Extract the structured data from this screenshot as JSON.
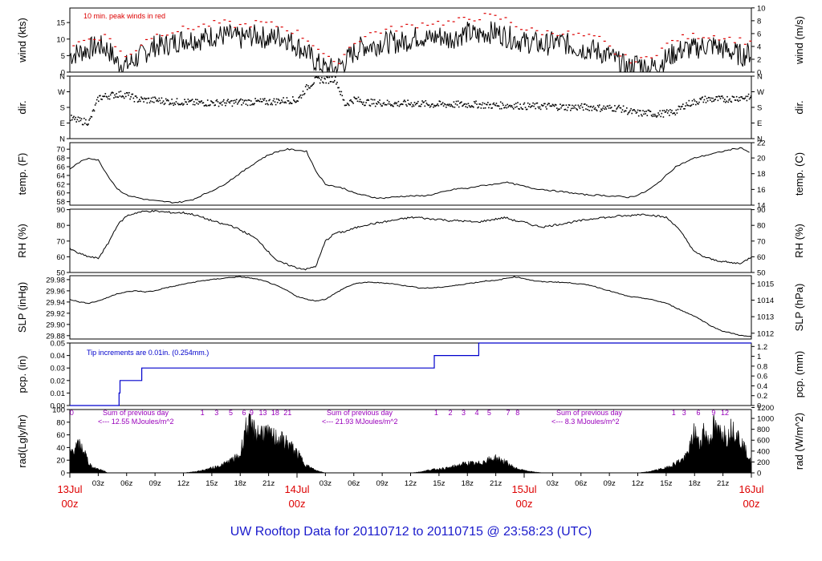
{
  "title": "UW Rooftop Data for 20110712  to  20110715 @ 23:58:23  (UTC)",
  "colors": {
    "title": "#1a1acc",
    "axis": "#000000",
    "wind_peak": "#dd0000",
    "pcp": "#0000cc",
    "rad_note": "#9900bb",
    "date": "#dd0000"
  },
  "x_axis": {
    "range_hours": [
      0,
      72
    ],
    "hour_ticks": [
      "03z",
      "06z",
      "09z",
      "12z",
      "15z",
      "18z",
      "21z",
      "03z",
      "06z",
      "09z",
      "12z",
      "15z",
      "18z",
      "21z",
      "03z",
      "06z",
      "09z",
      "12z",
      "15z",
      "18z",
      "21z"
    ],
    "date_labels": [
      {
        "hour": 0,
        "day": "13Jul",
        "time": "00z"
      },
      {
        "hour": 24,
        "day": "14Jul",
        "time": "00z"
      },
      {
        "hour": 48,
        "day": "15Jul",
        "time": "00z"
      },
      {
        "hour": 72,
        "day": "16Jul",
        "time": "00z"
      }
    ]
  },
  "panels": {
    "wind": {
      "ylabel_left": "wind (kts)",
      "ylabel_right": "wind (m/s)",
      "left_ticks": [
        "0",
        "5",
        "10",
        "15"
      ],
      "right_ticks": [
        "0",
        "2",
        "4",
        "6",
        "8",
        "10"
      ],
      "annotation": "10 min. peak winds in red"
    },
    "dir": {
      "ylabel_left": "dir.",
      "ylabel_right": "dir.",
      "ticks": [
        "N",
        "E",
        "S",
        "W",
        "N"
      ]
    },
    "temp": {
      "ylabel_left": "temp. (F)",
      "ylabel_right": "temp. (C)",
      "left_ticks": [
        "58",
        "60",
        "62",
        "64",
        "66",
        "68",
        "70"
      ],
      "right_ticks": [
        "14",
        "16",
        "18",
        "20",
        "22"
      ]
    },
    "rh": {
      "ylabel_left": "RH (%)",
      "ylabel_right": "RH (%)",
      "ticks": [
        "50",
        "60",
        "70",
        "80",
        "90"
      ]
    },
    "slp": {
      "ylabel_left": "SLP (inHg)",
      "ylabel_right": "SLP (hPa)",
      "left_ticks": [
        "29.88",
        "29.90",
        "29.92",
        "29.94",
        "29.96",
        "29.98"
      ],
      "right_ticks": [
        "1012",
        "1013",
        "1014",
        "1015"
      ]
    },
    "pcp": {
      "ylabel_left": "pcp. (in)",
      "ylabel_right": "pcp. (mm)",
      "left_ticks": [
        "0.00",
        "0.01",
        "0.02",
        "0.03",
        "0.04",
        "0.05"
      ],
      "right_ticks": [
        "0",
        "0.2",
        "0.4",
        "0.6",
        "0.8",
        "1",
        "1.2"
      ],
      "annotation": "Tip increments are 0.01in. (0.254mm.)"
    },
    "rad": {
      "ylabel_left": "rad(Lgly/hr)",
      "ylabel_right": "rad (W/m^2)",
      "left_ticks": [
        "0",
        "20",
        "40",
        "60",
        "80",
        "100"
      ],
      "right_ticks": [
        "0",
        "200",
        "400",
        "600",
        "800",
        "1000",
        "1200"
      ],
      "sum_notes": [
        {
          "line1": "Sum of previous day",
          "line2": "<--- 12.55 MJoules/m^2"
        },
        {
          "line1": "Sum of previous day",
          "line2": "<--- 21.93 MJoules/m^2"
        },
        {
          "line1": "Sum of previous day",
          "line2": "<--- 8.3 MJoules/m^2"
        }
      ],
      "cumulative_labels": [
        {
          "hour": 0.2,
          "text": "0"
        },
        {
          "hour": 14.0,
          "text": "1"
        },
        {
          "hour": 15.5,
          "text": "3"
        },
        {
          "hour": 17.0,
          "text": "5"
        },
        {
          "hour": 18.4,
          "text": "6"
        },
        {
          "hour": 19.2,
          "text": "9"
        },
        {
          "hour": 20.4,
          "text": "13"
        },
        {
          "hour": 21.7,
          "text": "18"
        },
        {
          "hour": 23.0,
          "text": "21"
        },
        {
          "hour": 38.7,
          "text": "1"
        },
        {
          "hour": 40.2,
          "text": "2"
        },
        {
          "hour": 41.6,
          "text": "3"
        },
        {
          "hour": 43.0,
          "text": "4"
        },
        {
          "hour": 44.3,
          "text": "5"
        },
        {
          "hour": 46.3,
          "text": "7"
        },
        {
          "hour": 47.3,
          "text": "8"
        },
        {
          "hour": 63.8,
          "text": "1"
        },
        {
          "hour": 64.9,
          "text": "3"
        },
        {
          "hour": 66.4,
          "text": "6"
        },
        {
          "hour": 68.0,
          "text": "9"
        },
        {
          "hour": 69.2,
          "text": "12"
        }
      ]
    }
  },
  "chart_data": {
    "type": "line",
    "title": "UW Rooftop Data for 20110712  to  20110715 @ 23:58:23  (UTC)",
    "x_unit": "hours since 13Jul 00z",
    "series": [
      {
        "name": "wind (kts)",
        "ylim": [
          0,
          19.4
        ],
        "x": [
          0,
          1,
          2,
          3,
          4,
          5,
          6,
          7,
          8,
          9,
          10,
          11,
          12,
          13,
          14,
          15,
          16,
          17,
          18,
          19,
          20,
          21,
          22,
          23,
          24,
          25,
          26,
          27,
          28,
          29,
          30,
          31,
          32,
          33,
          34,
          35,
          36,
          37,
          38,
          39,
          40,
          41,
          42,
          43,
          44,
          45,
          46,
          47,
          48,
          49,
          50,
          51,
          52,
          53,
          54,
          55,
          56,
          57,
          58,
          59,
          60,
          61,
          62,
          63,
          64,
          65,
          66,
          67,
          68,
          69,
          70,
          71,
          72
        ],
        "values": [
          5,
          6,
          7,
          8,
          7,
          3,
          2,
          4,
          6,
          8,
          8,
          9,
          10,
          10,
          10,
          11,
          11,
          11,
          10,
          11,
          11,
          10,
          11,
          10,
          8,
          6,
          3,
          1,
          1,
          3,
          6,
          8,
          8,
          9,
          9,
          9,
          10,
          11,
          10,
          11,
          10,
          11,
          12,
          11,
          12,
          12,
          11,
          10,
          9,
          9,
          8,
          9,
          9,
          8,
          7,
          7,
          6,
          5,
          3,
          1,
          3,
          1,
          2,
          4,
          6,
          7,
          7,
          8,
          8,
          7,
          6,
          5,
          6
        ]
      },
      {
        "name": "10 min. peak winds",
        "ylim": [
          0,
          19.4
        ],
        "x": [
          0,
          2,
          4,
          6,
          8,
          10,
          12,
          14,
          16,
          18,
          20,
          22,
          24,
          26,
          28,
          30,
          32,
          34,
          36,
          38,
          40,
          42,
          44,
          46,
          48,
          50,
          52,
          54,
          56,
          58,
          60,
          62,
          64,
          66,
          68,
          70,
          72
        ],
        "values": [
          8,
          10,
          11,
          4,
          10,
          12,
          13,
          14,
          15,
          14,
          15,
          14,
          12,
          8,
          2,
          9,
          12,
          13,
          14,
          15,
          15,
          16,
          17,
          16,
          13,
          12,
          12,
          11,
          10,
          5,
          3,
          6,
          10,
          11,
          11,
          10,
          9
        ]
      },
      {
        "name": "dir.",
        "ylim": [
          0,
          360
        ],
        "y_unit": "degrees",
        "x": [
          0,
          1,
          2,
          3,
          4,
          5,
          6,
          7,
          8,
          9,
          10,
          11,
          12,
          13,
          14,
          15,
          16,
          17,
          18,
          19,
          20,
          21,
          22,
          23,
          24,
          25,
          26,
          27,
          28,
          29,
          30,
          31,
          32,
          33,
          34,
          35,
          36,
          37,
          38,
          39,
          40,
          41,
          42,
          43,
          44,
          45,
          46,
          47,
          48,
          49,
          50,
          51,
          52,
          53,
          54,
          55,
          56,
          57,
          58,
          59,
          60,
          61,
          62,
          63,
          64,
          65,
          66,
          67,
          68,
          69,
          70,
          71,
          72
        ],
        "values": [
          120,
          105,
          100,
          240,
          250,
          260,
          255,
          230,
          225,
          225,
          220,
          215,
          215,
          210,
          210,
          210,
          210,
          210,
          215,
          215,
          215,
          215,
          220,
          225,
          225,
          300,
          345,
          340,
          350,
          200,
          230,
          215,
          210,
          210,
          205,
          205,
          205,
          205,
          200,
          200,
          200,
          200,
          200,
          200,
          195,
          195,
          195,
          195,
          190,
          190,
          190,
          190,
          185,
          185,
          185,
          185,
          180,
          180,
          180,
          160,
          150,
          150,
          145,
          150,
          160,
          200,
          215,
          230,
          230,
          230,
          235,
          240,
          240
        ]
      },
      {
        "name": "temp. (F)",
        "ylim": [
          57.2,
          71.5
        ],
        "x": [
          0,
          1,
          2,
          3,
          4,
          5,
          6,
          7,
          8,
          9,
          10,
          11,
          12,
          13,
          14,
          15,
          16,
          17,
          18,
          19,
          20,
          21,
          22,
          23,
          24,
          25,
          26,
          27,
          28,
          29,
          30,
          31,
          32,
          33,
          34,
          35,
          36,
          37,
          38,
          39,
          40,
          41,
          42,
          43,
          44,
          45,
          46,
          47,
          48,
          49,
          50,
          51,
          52,
          53,
          54,
          55,
          56,
          57,
          58,
          59,
          60,
          61,
          62,
          63,
          64,
          65,
          66,
          67,
          68,
          69,
          70,
          71,
          72
        ],
        "values": [
          65.5,
          67,
          68,
          67.5,
          64,
          61,
          59.5,
          59,
          58.5,
          58.2,
          58,
          57.8,
          58,
          58.5,
          59.5,
          60.5,
          61.5,
          63,
          64.5,
          66,
          67.5,
          68.7,
          69.5,
          70,
          69.8,
          69.5,
          65,
          62,
          61.5,
          61,
          60,
          59.5,
          59,
          58.8,
          59,
          59.2,
          59.3,
          59.3,
          59.5,
          60,
          60.5,
          61,
          61,
          61.5,
          61.8,
          62,
          62.5,
          62,
          61.5,
          61,
          60.8,
          60.5,
          60.3,
          60,
          59.7,
          59.5,
          59.5,
          59.3,
          59.2,
          59,
          59.5,
          60.5,
          62,
          64,
          66,
          67,
          68,
          68.5,
          69,
          69.5,
          70,
          70.3,
          69
        ]
      },
      {
        "name": "RH (%)",
        "ylim": [
          50,
          90.3
        ],
        "x": [
          0,
          1,
          2,
          3,
          4,
          5,
          6,
          7,
          8,
          9,
          10,
          11,
          12,
          13,
          14,
          15,
          16,
          17,
          18,
          19,
          20,
          21,
          22,
          23,
          24,
          25,
          26,
          27,
          28,
          29,
          30,
          31,
          32,
          33,
          34,
          35,
          36,
          37,
          38,
          39,
          40,
          41,
          42,
          43,
          44,
          45,
          46,
          47,
          48,
          49,
          50,
          51,
          52,
          53,
          54,
          55,
          56,
          57,
          58,
          59,
          60,
          61,
          62,
          63,
          64,
          65,
          66,
          67,
          68,
          69,
          70,
          71,
          72
        ],
        "values": [
          65,
          62,
          60,
          59,
          68,
          80,
          86,
          88,
          89,
          89,
          88.5,
          88,
          88,
          87,
          85,
          83,
          81,
          80,
          77,
          74,
          70,
          63,
          57,
          55,
          53,
          52,
          54,
          70,
          75,
          76,
          78,
          80,
          81,
          82,
          83,
          84,
          85,
          85,
          84,
          84,
          83,
          83,
          82.5,
          82,
          83,
          84,
          85,
          83,
          82,
          80,
          79,
          80,
          81,
          82,
          83,
          84,
          85,
          85,
          86,
          86,
          87,
          87,
          86,
          85,
          80,
          72,
          63,
          60,
          58,
          57,
          56,
          56,
          60
        ]
      },
      {
        "name": "SLP (inHg)",
        "ylim": [
          29.874,
          29.987
        ],
        "x": [
          0,
          1,
          2,
          3,
          4,
          5,
          6,
          7,
          8,
          9,
          10,
          11,
          12,
          13,
          14,
          15,
          16,
          17,
          18,
          19,
          20,
          21,
          22,
          23,
          24,
          25,
          26,
          27,
          28,
          29,
          30,
          31,
          32,
          33,
          34,
          35,
          36,
          37,
          38,
          39,
          40,
          41,
          42,
          43,
          44,
          45,
          46,
          47,
          48,
          49,
          50,
          51,
          52,
          53,
          54,
          55,
          56,
          57,
          58,
          59,
          60,
          61,
          62,
          63,
          64,
          65,
          66,
          67,
          68,
          69,
          70,
          71,
          72
        ],
        "values": [
          29.945,
          29.94,
          29.938,
          29.942,
          29.948,
          29.955,
          29.958,
          29.96,
          29.958,
          29.96,
          29.965,
          29.968,
          29.972,
          29.975,
          29.978,
          29.98,
          29.982,
          29.984,
          29.985,
          29.983,
          29.98,
          29.975,
          29.968,
          29.96,
          29.95,
          29.945,
          29.942,
          29.945,
          29.955,
          29.965,
          29.972,
          29.975,
          29.975,
          29.974,
          29.973,
          29.97,
          29.968,
          29.965,
          29.965,
          29.966,
          29.968,
          29.97,
          29.973,
          29.975,
          29.978,
          29.978,
          29.982,
          29.985,
          29.982,
          29.978,
          29.976,
          29.976,
          29.975,
          29.974,
          29.972,
          29.97,
          29.965,
          29.96,
          29.955,
          29.95,
          29.948,
          29.946,
          29.942,
          29.938,
          29.93,
          29.922,
          29.915,
          29.905,
          29.895,
          29.888,
          29.884,
          29.88,
          29.878
        ]
      },
      {
        "name": "pcp. (in)",
        "ylim": [
          0,
          0.05
        ],
        "x": [
          0,
          5.2,
          5.3,
          7.6,
          38.5,
          43.2,
          72
        ],
        "values": [
          0,
          0.01,
          0.02,
          0.03,
          0.04,
          0.05,
          0.05
        ]
      },
      {
        "name": "rad(Lgly/hr)",
        "ylim": [
          0,
          100
        ],
        "x": [
          0,
          0.5,
          1,
          1.5,
          2,
          2.5,
          3,
          3.5,
          4,
          5,
          8,
          11,
          12,
          13,
          14,
          15,
          16,
          17,
          18,
          18.5,
          19,
          19.5,
          20,
          20.5,
          21,
          22,
          23,
          24,
          25,
          26,
          27,
          36,
          37,
          38,
          39,
          40,
          41,
          42,
          43,
          44,
          45,
          46,
          47,
          48,
          49,
          50,
          51,
          60,
          61,
          62,
          63,
          64,
          65,
          65.5,
          66,
          66.5,
          67,
          67.5,
          68,
          68.5,
          69,
          69.5,
          70,
          71,
          72
        ],
        "values": [
          40,
          50,
          55,
          45,
          20,
          10,
          8,
          5,
          0,
          0,
          0,
          0,
          0,
          2,
          5,
          10,
          15,
          25,
          35,
          90,
          95,
          85,
          80,
          85,
          75,
          70,
          60,
          40,
          15,
          5,
          0,
          0,
          2,
          6,
          8,
          10,
          15,
          20,
          18,
          25,
          30,
          22,
          10,
          5,
          2,
          0,
          0,
          0,
          2,
          6,
          10,
          20,
          30,
          50,
          85,
          55,
          90,
          60,
          95,
          80,
          85,
          70,
          95,
          60,
          20
        ]
      }
    ]
  }
}
